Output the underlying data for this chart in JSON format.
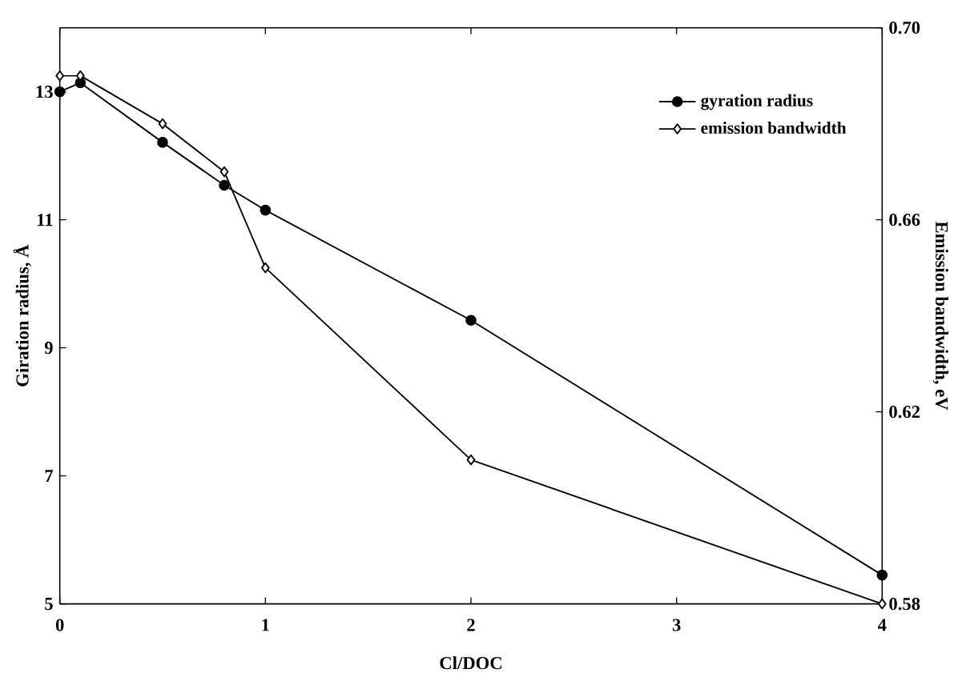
{
  "chart_data": {
    "type": "line",
    "xlabel": "Cl/DOC",
    "ylabel": "Giration radius, Å",
    "y2label": "Emission bandwidth, eV",
    "x": [
      0,
      0.1,
      0.5,
      0.8,
      1,
      2,
      4
    ],
    "series": [
      {
        "name": "gyration radius",
        "color": "#000000",
        "marker": "circle",
        "values": [
          13.0,
          13.14,
          12.21,
          11.54,
          11.15,
          9.43,
          5.45
        ]
      },
      {
        "name": "emission bandwidth",
        "color": "#000000",
        "marker": "diamond",
        "axis": "y2",
        "values": [
          0.69,
          0.69,
          0.68,
          0.67,
          0.65,
          0.61,
          0.58
        ]
      }
    ],
    "xlim": [
      0,
      4
    ],
    "xticks": [
      0,
      1,
      2,
      3,
      4
    ],
    "ylim": [
      5,
      14
    ],
    "yticks": [
      5,
      7,
      9,
      11,
      13
    ],
    "y2lim": [
      0.58,
      0.7
    ],
    "y2ticks": [
      0.58,
      0.62,
      0.66,
      {
        "value": 0.7,
        "label": "0.70"
      }
    ],
    "legend": "top right",
    "grid": false,
    "line_style": "solid"
  }
}
